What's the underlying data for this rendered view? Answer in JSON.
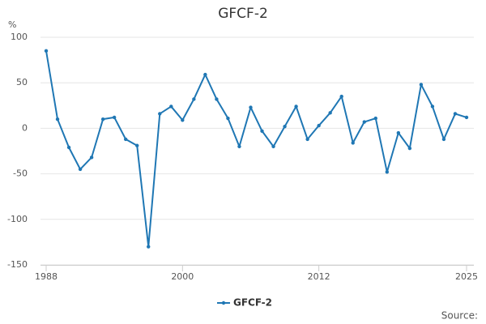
{
  "chart_data": {
    "type": "line",
    "title": "GFCF-2",
    "y_label": "%",
    "source": "Source:",
    "x": [
      1988,
      1989,
      1990,
      1991,
      1992,
      1993,
      1994,
      1995,
      1996,
      1997,
      1998,
      1999,
      2000,
      2001,
      2002,
      2003,
      2004,
      2005,
      2006,
      2007,
      2008,
      2009,
      2010,
      2011,
      2012,
      2013,
      2014,
      2015,
      2016,
      2017,
      2018,
      2019,
      2020,
      2021,
      2022,
      2023,
      2024,
      2025
    ],
    "series": [
      {
        "name": "GFCF-2",
        "color": "#1f77b4",
        "values": [
          85,
          10,
          -21,
          -45,
          -32,
          10,
          12,
          -12,
          -19,
          -130,
          16,
          24,
          9,
          32,
          59,
          32,
          11,
          -20,
          23,
          -3,
          -20,
          2,
          24,
          -12,
          3,
          17,
          35,
          -16,
          7,
          11,
          -48,
          -5,
          -22,
          48,
          24,
          -12,
          16,
          12
        ]
      }
    ],
    "xlim": [
      1988,
      2025
    ],
    "xticks": [
      1988,
      2000,
      2012,
      2025
    ],
    "ylim": [
      -150,
      100
    ],
    "yticks": [
      -150,
      -100,
      -50,
      0,
      50,
      100
    ],
    "grid": true,
    "legend": "bottom"
  }
}
